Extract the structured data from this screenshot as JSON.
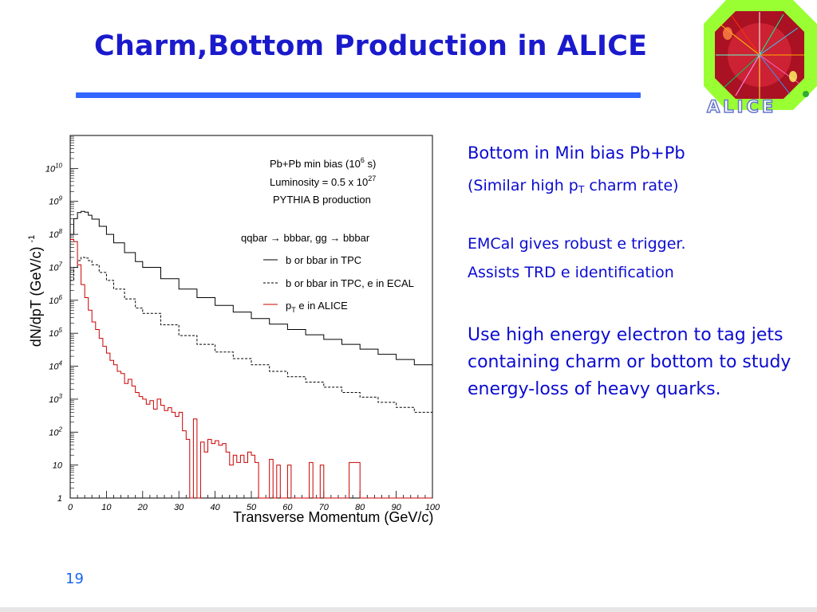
{
  "slide": {
    "title": "Charm,Bottom Production in ALICE",
    "page_number": "19",
    "logo_text": "ALICE"
  },
  "bullets": {
    "b1": "Bottom in Min bias Pb+Pb",
    "b2_pre": "(Similar high p",
    "b2_sub": "T",
    "b2_post": " charm rate)",
    "b3": "EMCal gives robust e trigger.",
    "b4": "Assists TRD e identification",
    "b5": "Use high energy electron to tag jets containing charm or bottom to study energy-loss of heavy quarks."
  },
  "colors": {
    "title": "#1a1acc",
    "rule": "#3366ff",
    "bullet_text": "#0b0bd0",
    "page_number": "#1a66ee",
    "electron_series": "#cc0000"
  },
  "chart_data": {
    "type": "line",
    "xlabel": "Transverse Momentum (GeV/c)",
    "ylabel": "dN/dpT  (GeV/c)",
    "ylabel_sup": "-1",
    "xlim": [
      0,
      100
    ],
    "ylim": [
      1,
      100000000000.0
    ],
    "yscale": "log",
    "x_ticks": [
      "0",
      "10",
      "20",
      "30",
      "40",
      "50",
      "60",
      "70",
      "80",
      "90",
      "100"
    ],
    "y_ticks": [
      {
        "base": "1",
        "exp": ""
      },
      {
        "base": "10",
        "exp": ""
      },
      {
        "base": "10",
        "exp": "2"
      },
      {
        "base": "10",
        "exp": "3"
      },
      {
        "base": "10",
        "exp": "4"
      },
      {
        "base": "10",
        "exp": "5"
      },
      {
        "base": "10",
        "exp": "6"
      },
      {
        "base": "10",
        "exp": "7"
      },
      {
        "base": "10",
        "exp": "8"
      },
      {
        "base": "10",
        "exp": "9"
      },
      {
        "base": "10",
        "exp": "10"
      }
    ],
    "annotations": {
      "line1_pre": "Pb+Pb min bias (10",
      "line1_sup": "6",
      "line1_post": " s)",
      "line2_pre": "Luminosity = 0.5 x 10",
      "line2_sup": "27",
      "line3": "PYTHIA   B production",
      "process_pre": "qqbar ",
      "process_arrow1": "→",
      "process_mid": " bbbar, gg ",
      "process_arrow2": "→",
      "process_post": " bbbar"
    },
    "legend_position": "top-right",
    "series": [
      {
        "name": "b or bbar in TPC",
        "style": "solid",
        "color": "#000000",
        "points": [
          [
            0,
            100000000.0
          ],
          [
            1,
            300000000.0
          ],
          [
            2,
            460000000.0
          ],
          [
            3,
            500000000.0
          ],
          [
            4,
            470000000.0
          ],
          [
            5,
            380000000.0
          ],
          [
            6,
            290000000.0
          ],
          [
            8,
            175000000.0
          ],
          [
            10,
            100000000.0
          ],
          [
            12,
            55000000.0
          ],
          [
            15,
            28000000.0
          ],
          [
            18,
            15000000.0
          ],
          [
            20,
            10000000.0
          ],
          [
            25,
            4500000.0
          ],
          [
            30,
            2200000.0
          ],
          [
            35,
            1200000.0
          ],
          [
            40,
            700000.0
          ],
          [
            45,
            440000.0
          ],
          [
            50,
            280000.0
          ],
          [
            55,
            190000.0
          ],
          [
            60,
            130000.0
          ],
          [
            65,
            90000.0
          ],
          [
            70,
            65000.0
          ],
          [
            75,
            46000.0
          ],
          [
            80,
            33000.0
          ],
          [
            85,
            23000.0
          ],
          [
            90,
            16000.0
          ],
          [
            95,
            11000.0
          ],
          [
            100,
            8000.0
          ]
        ]
      },
      {
        "name": "b or bbar in TPC, e in ECAL",
        "style": "dashed",
        "color": "#000000",
        "points": [
          [
            0,
            4000000.0
          ],
          [
            1,
            10000000.0
          ],
          [
            2,
            16000000.0
          ],
          [
            3,
            20000000.0
          ],
          [
            4,
            19000000.0
          ],
          [
            5,
            16000000.0
          ],
          [
            6,
            12000000.0
          ],
          [
            8,
            7000000.0
          ],
          [
            10,
            4000000.0
          ],
          [
            12,
            2200000.0
          ],
          [
            15,
            1100000.0
          ],
          [
            18,
            580000.0
          ],
          [
            20,
            400000.0
          ],
          [
            25,
            180000.0
          ],
          [
            30,
            85000.0
          ],
          [
            35,
            46000.0
          ],
          [
            40,
            27000.0
          ],
          [
            45,
            17000.0
          ],
          [
            50,
            11000.0
          ],
          [
            55,
            7000.0
          ],
          [
            60,
            4800.0
          ],
          [
            65,
            3300.0
          ],
          [
            70,
            2300.0
          ],
          [
            75,
            1600.0
          ],
          [
            80,
            1150.0
          ],
          [
            85,
            800
          ],
          [
            90,
            560
          ],
          [
            95,
            400
          ],
          [
            100,
            260
          ]
        ]
      },
      {
        "name": "pT e in ALICE",
        "name_pre": "p",
        "name_sub": "T",
        "name_post": " e in ALICE",
        "style": "solid",
        "color": "#cc0000",
        "points": [
          [
            0,
            70000000.0
          ],
          [
            1,
            60000000.0
          ],
          [
            2,
            12000000.0
          ],
          [
            3,
            3000000.0
          ],
          [
            4,
            1200000.0
          ],
          [
            5,
            500000.0
          ],
          [
            6,
            220000.0
          ],
          [
            7,
            130000.0
          ],
          [
            8,
            70000.0
          ],
          [
            9,
            40000.0
          ],
          [
            10,
            25000.0
          ],
          [
            11,
            15000.0
          ],
          [
            12,
            11000.0
          ],
          [
            13,
            7000.0
          ],
          [
            14,
            6000.0
          ],
          [
            15,
            3000.0
          ],
          [
            16,
            4000.0
          ],
          [
            17,
            2500.0
          ],
          [
            18,
            1600.0
          ],
          [
            19,
            1200.0
          ],
          [
            20,
            1000.0
          ],
          [
            21,
            700
          ],
          [
            22,
            900
          ],
          [
            23,
            500
          ],
          [
            24,
            1000.0
          ],
          [
            25,
            650
          ],
          [
            26,
            450
          ],
          [
            27,
            550
          ],
          [
            28,
            400
          ],
          [
            29,
            300
          ],
          [
            30,
            400
          ],
          [
            31,
            110
          ],
          [
            32,
            60
          ],
          [
            33,
            1
          ],
          [
            34,
            250
          ],
          [
            35,
            1
          ],
          [
            36,
            50
          ],
          [
            37,
            25
          ],
          [
            38,
            60
          ],
          [
            39,
            45
          ],
          [
            40,
            55
          ],
          [
            41,
            40
          ],
          [
            42,
            45
          ],
          [
            43,
            25
          ],
          [
            44,
            10
          ],
          [
            45,
            20
          ],
          [
            46,
            12
          ],
          [
            47,
            20
          ],
          [
            48,
            12
          ],
          [
            49,
            25
          ],
          [
            50,
            20
          ],
          [
            51,
            12
          ],
          [
            52,
            1
          ],
          [
            55,
            15
          ],
          [
            56,
            1
          ],
          [
            57,
            10
          ],
          [
            58,
            1
          ],
          [
            60,
            10
          ],
          [
            61,
            1
          ],
          [
            66,
            12
          ],
          [
            67,
            1
          ],
          [
            69,
            10
          ],
          [
            70,
            1
          ],
          [
            77,
            12
          ],
          [
            80,
            1
          ]
        ]
      }
    ]
  }
}
